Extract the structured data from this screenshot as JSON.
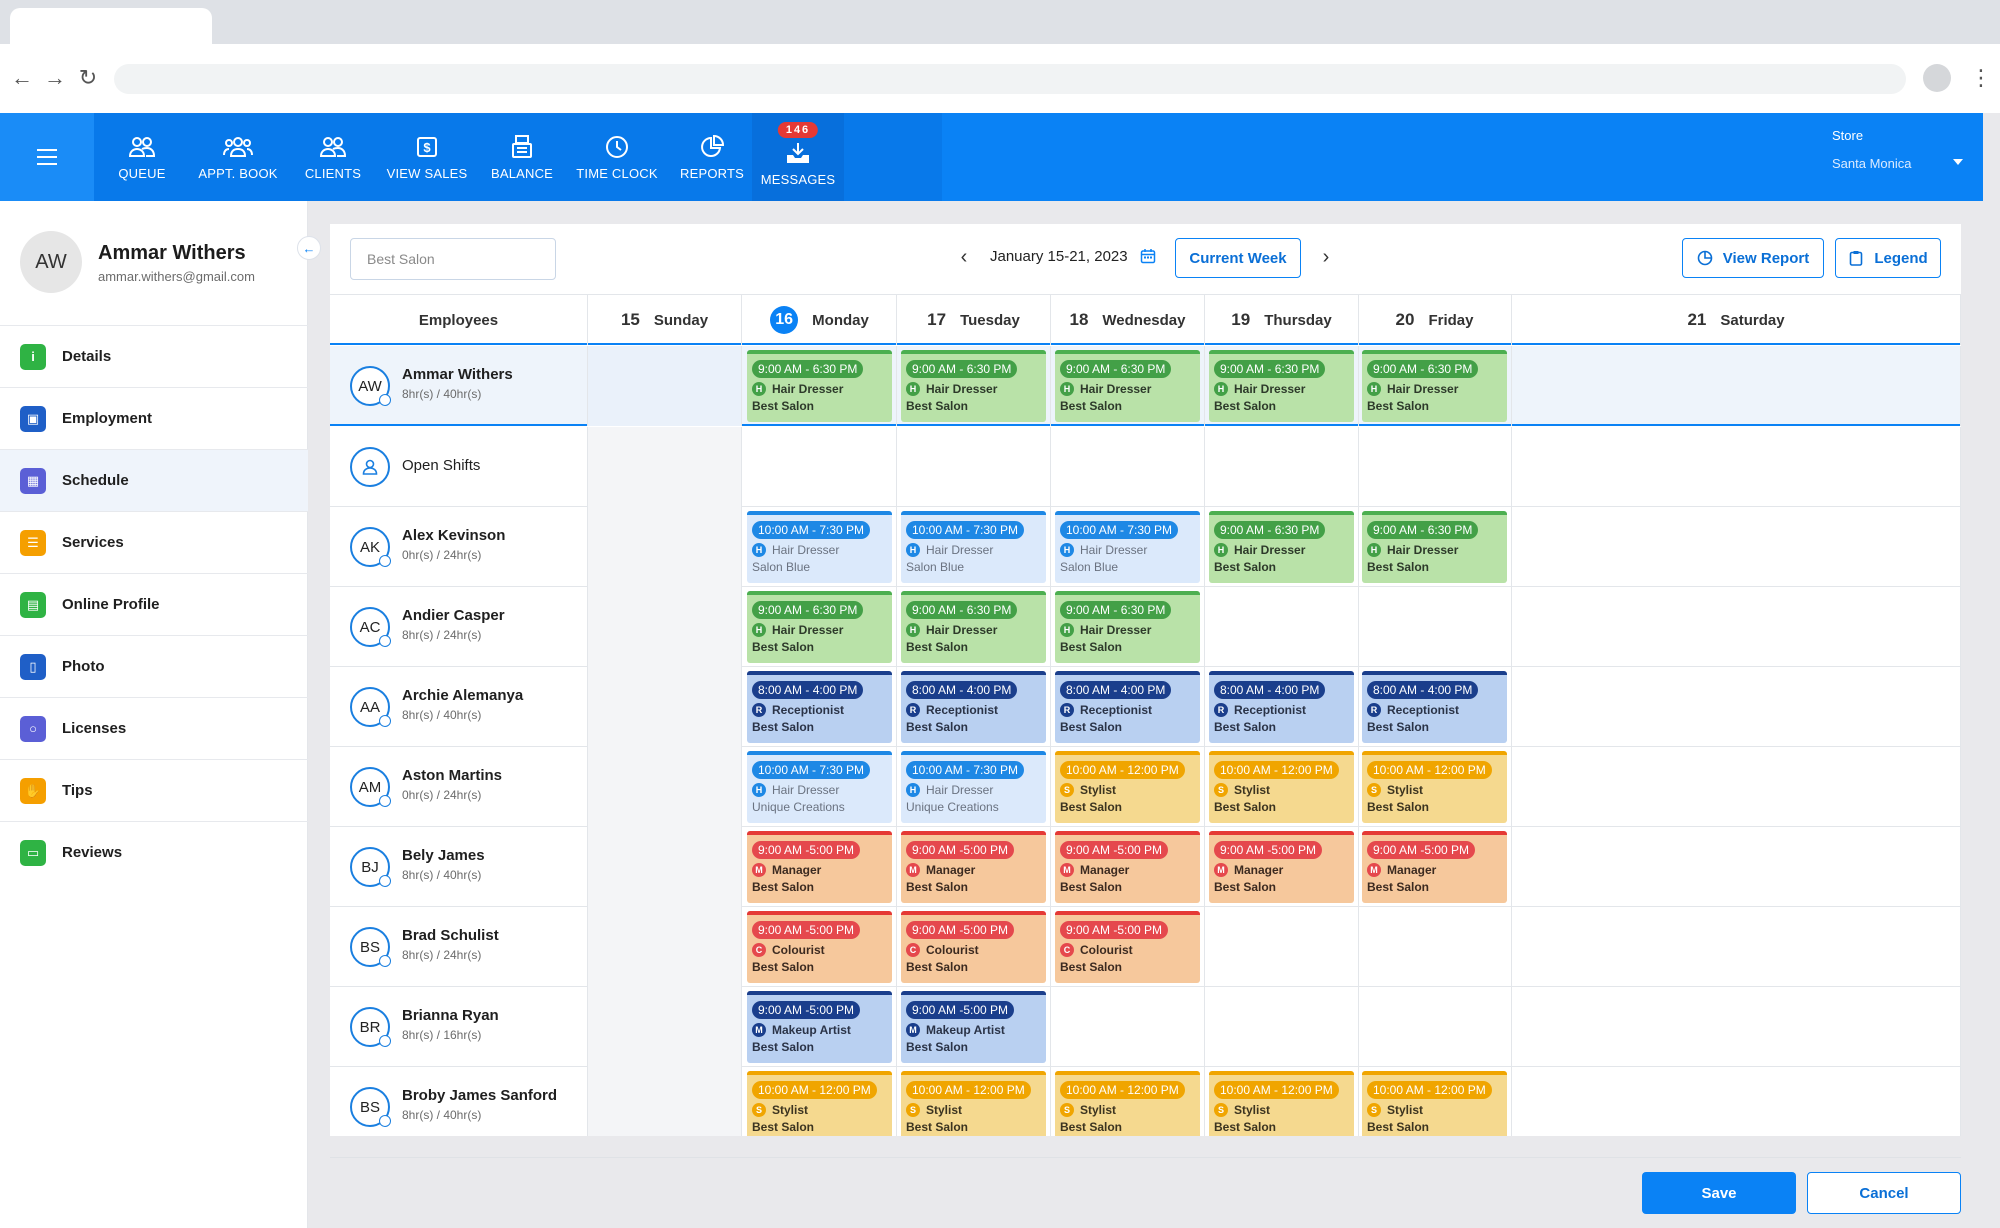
{
  "nav": {
    "items": [
      {
        "key": "queue",
        "label": "QUEUE",
        "icon": "users-icon"
      },
      {
        "key": "appt",
        "label": "APPT. BOOK",
        "icon": "group-icon"
      },
      {
        "key": "clients",
        "label": "CLIENTS",
        "icon": "clients-icon"
      },
      {
        "key": "sales",
        "label": "VIEW SALES",
        "icon": "dollar-icon"
      },
      {
        "key": "balance",
        "label": "BALANCE",
        "icon": "register-icon"
      },
      {
        "key": "timeclock",
        "label": "TIME CLOCK",
        "icon": "clock-icon"
      },
      {
        "key": "reports",
        "label": "REPORTS",
        "icon": "pie-chart-icon"
      },
      {
        "key": "messages",
        "label": "MESSAGES",
        "icon": "inbox-icon"
      }
    ],
    "messages_badge": "146"
  },
  "store": {
    "label": "Store",
    "value": "Santa Monica"
  },
  "profile": {
    "initials": "AW",
    "name": "Ammar Withers",
    "email": "ammar.withers@gmail.com"
  },
  "sidebar": {
    "items": [
      {
        "label": "Details",
        "icon": "info-icon",
        "color": "#2fb344",
        "glyph": "i"
      },
      {
        "label": "Employment",
        "icon": "briefcase-icon",
        "color": "#1f5fc7",
        "glyph": "▣"
      },
      {
        "label": "Schedule",
        "icon": "calendar-icon",
        "color": "#5b5fd6",
        "glyph": "▦"
      },
      {
        "label": "Services",
        "icon": "list-icon",
        "color": "#f59f00",
        "glyph": "☰"
      },
      {
        "label": "Online Profile",
        "icon": "document-icon",
        "color": "#2fb344",
        "glyph": "▤"
      },
      {
        "label": "Photo",
        "icon": "badge-icon",
        "color": "#1f5fc7",
        "glyph": "▯"
      },
      {
        "label": "Licenses",
        "icon": "circle-icon",
        "color": "#5b5fd6",
        "glyph": "○"
      },
      {
        "label": "Tips",
        "icon": "hand-coin-icon",
        "color": "#f59f00",
        "glyph": "✋"
      },
      {
        "label": "Reviews",
        "icon": "chat-icon",
        "color": "#2fb344",
        "glyph": "▭"
      }
    ],
    "active": "Schedule"
  },
  "toolbar": {
    "search_placeholder": "Best Salon",
    "week_label": "January 15-21, 2023",
    "current_week": "Current Week",
    "view_report": "View Report",
    "legend": "Legend"
  },
  "grid": {
    "employees_header": "Employees",
    "days": [
      {
        "num": "15",
        "name": "Sunday",
        "today": false
      },
      {
        "num": "16",
        "name": "Monday",
        "today": true
      },
      {
        "num": "17",
        "name": "Tuesday",
        "today": false
      },
      {
        "num": "18",
        "name": "Wednesday",
        "today": false
      },
      {
        "num": "19",
        "name": "Thursday",
        "today": false
      },
      {
        "num": "20",
        "name": "Friday",
        "today": false
      },
      {
        "num": "21",
        "name": "Saturday",
        "today": false
      }
    ],
    "rows": [
      {
        "initials": "AW",
        "name": "Ammar Withers",
        "hours": "8hr(s) / 40hr(s)",
        "highlight": true,
        "shifts": [
          null,
          {
            "time": "9:00 AM - 6:30 PM",
            "code": "H",
            "role": "Hair Dresser",
            "loc": "Best Salon",
            "style": "green"
          },
          {
            "time": "9:00 AM - 6:30 PM",
            "code": "H",
            "role": "Hair Dresser",
            "loc": "Best Salon",
            "style": "green"
          },
          {
            "time": "9:00 AM - 6:30 PM",
            "code": "H",
            "role": "Hair Dresser",
            "loc": "Best Salon",
            "style": "green"
          },
          {
            "time": "9:00 AM - 6:30 PM",
            "code": "H",
            "role": "Hair Dresser",
            "loc": "Best Salon",
            "style": "green"
          },
          {
            "time": "9:00 AM - 6:30 PM",
            "code": "H",
            "role": "Hair Dresser",
            "loc": "Best Salon",
            "style": "green"
          },
          null
        ]
      },
      {
        "initials": "",
        "name": "Open Shifts",
        "hours": "",
        "open": true,
        "shifts": [
          null,
          null,
          null,
          null,
          null,
          null,
          null
        ]
      },
      {
        "initials": "AK",
        "name": "Alex Kevinson",
        "hours": "0hr(s) / 24hr(s)",
        "shifts": [
          null,
          {
            "time": "10:00 AM - 7:30 PM",
            "code": "H",
            "role": "Hair Dresser",
            "loc": "Salon Blue",
            "style": "lightblue"
          },
          {
            "time": "10:00 AM - 7:30 PM",
            "code": "H",
            "role": "Hair Dresser",
            "loc": "Salon Blue",
            "style": "lightblue"
          },
          {
            "time": "10:00 AM - 7:30 PM",
            "code": "H",
            "role": "Hair Dresser",
            "loc": "Salon Blue",
            "style": "lightblue"
          },
          {
            "time": "9:00 AM - 6:30 PM",
            "code": "H",
            "role": "Hair Dresser",
            "loc": "Best Salon",
            "style": "green"
          },
          {
            "time": "9:00 AM - 6:30 PM",
            "code": "H",
            "role": "Hair Dresser",
            "loc": "Best Salon",
            "style": "green"
          },
          null
        ]
      },
      {
        "initials": "AC",
        "name": "Andier Casper",
        "hours": "8hr(s) / 24hr(s)",
        "shifts": [
          null,
          {
            "time": "9:00 AM - 6:30 PM",
            "code": "H",
            "role": "Hair Dresser",
            "loc": "Best Salon",
            "style": "green"
          },
          {
            "time": "9:00 AM - 6:30 PM",
            "code": "H",
            "role": "Hair Dresser",
            "loc": "Best Salon",
            "style": "green"
          },
          {
            "time": "9:00 AM - 6:30 PM",
            "code": "H",
            "role": "Hair Dresser",
            "loc": "Best Salon",
            "style": "green"
          },
          null,
          null,
          null
        ]
      },
      {
        "initials": "AA",
        "name": "Archie Alemanya",
        "hours": "8hr(s) / 40hr(s)",
        "shifts": [
          null,
          {
            "time": "8:00 AM  - 4:00 PM",
            "code": "R",
            "role": "Receptionist",
            "loc": "Best Salon",
            "style": "navy"
          },
          {
            "time": "8:00 AM  - 4:00 PM",
            "code": "R",
            "role": "Receptionist",
            "loc": "Best Salon",
            "style": "navy"
          },
          {
            "time": "8:00 AM  - 4:00 PM",
            "code": "R",
            "role": "Receptionist",
            "loc": "Best Salon",
            "style": "navy"
          },
          {
            "time": "8:00 AM  - 4:00 PM",
            "code": "R",
            "role": "Receptionist",
            "loc": "Best Salon",
            "style": "navy"
          },
          {
            "time": "8:00 AM  - 4:00 PM",
            "code": "R",
            "role": "Receptionist",
            "loc": "Best Salon",
            "style": "navy"
          },
          null
        ]
      },
      {
        "initials": "AM",
        "name": "Aston Martins",
        "hours": "0hr(s) / 24hr(s)",
        "shifts": [
          null,
          {
            "time": "10:00 AM - 7:30 PM",
            "code": "H",
            "role": "Hair Dresser",
            "loc": "Unique Creations",
            "style": "lightblue"
          },
          {
            "time": "10:00 AM - 7:30 PM",
            "code": "H",
            "role": "Hair Dresser",
            "loc": "Unique Creations",
            "style": "lightblue"
          },
          {
            "time": "10:00 AM - 12:00 PM",
            "code": "S",
            "role": "Stylist",
            "loc": "Best Salon",
            "style": "yellow"
          },
          {
            "time": "10:00 AM - 12:00 PM",
            "code": "S",
            "role": "Stylist",
            "loc": "Best Salon",
            "style": "yellow"
          },
          {
            "time": "10:00 AM - 12:00 PM",
            "code": "S",
            "role": "Stylist",
            "loc": "Best Salon",
            "style": "yellow"
          },
          null
        ]
      },
      {
        "initials": "BJ",
        "name": "Bely James",
        "hours": "8hr(s) / 40hr(s)",
        "shifts": [
          null,
          {
            "time": "9:00 AM -5:00 PM",
            "code": "M",
            "role": "Manager",
            "loc": "Best Salon",
            "style": "orange"
          },
          {
            "time": "9:00 AM -5:00 PM",
            "code": "M",
            "role": "Manager",
            "loc": "Best Salon",
            "style": "orange"
          },
          {
            "time": "9:00 AM -5:00 PM",
            "code": "M",
            "role": "Manager",
            "loc": "Best Salon",
            "style": "orange"
          },
          {
            "time": "9:00 AM -5:00 PM",
            "code": "M",
            "role": "Manager",
            "loc": "Best Salon",
            "style": "orange"
          },
          {
            "time": "9:00 AM -5:00 PM",
            "code": "M",
            "role": "Manager",
            "loc": "Best Salon",
            "style": "orange"
          },
          null
        ]
      },
      {
        "initials": "BS",
        "name": "Brad Schulist",
        "hours": "8hr(s) / 24hr(s)",
        "shifts": [
          null,
          {
            "time": "9:00 AM -5:00 PM",
            "code": "C",
            "role": "Colourist",
            "loc": "Best Salon",
            "style": "orange"
          },
          {
            "time": "9:00 AM -5:00 PM",
            "code": "C",
            "role": "Colourist",
            "loc": "Best Salon",
            "style": "orange"
          },
          {
            "time": "9:00 AM -5:00 PM",
            "code": "C",
            "role": "Colourist",
            "loc": "Best Salon",
            "style": "orange"
          },
          null,
          null,
          null
        ]
      },
      {
        "initials": "BR",
        "name": "Brianna Ryan",
        "hours": "8hr(s) / 16hr(s)",
        "shifts": [
          null,
          {
            "time": "9:00 AM -5:00 PM",
            "code": "M",
            "role": "Makeup Artist",
            "loc": "Best Salon",
            "style": "navy"
          },
          {
            "time": "9:00 AM -5:00 PM",
            "code": "M",
            "role": "Makeup Artist",
            "loc": "Best Salon",
            "style": "navy"
          },
          null,
          null,
          null,
          null
        ]
      },
      {
        "initials": "BS",
        "name": "Broby James Sanford",
        "hours": "8hr(s) / 40hr(s)",
        "shifts": [
          null,
          {
            "time": "10:00 AM - 12:00 PM",
            "code": "S",
            "role": "Stylist",
            "loc": "Best Salon",
            "style": "yellow"
          },
          {
            "time": "10:00 AM - 12:00 PM",
            "code": "S",
            "role": "Stylist",
            "loc": "Best Salon",
            "style": "yellow"
          },
          {
            "time": "10:00 AM - 12:00 PM",
            "code": "S",
            "role": "Stylist",
            "loc": "Best Salon",
            "style": "yellow"
          },
          {
            "time": "10:00 AM - 12:00 PM",
            "code": "S",
            "role": "Stylist",
            "loc": "Best Salon",
            "style": "yellow"
          },
          {
            "time": "10:00 AM - 12:00 PM",
            "code": "S",
            "role": "Stylist",
            "loc": "Best Salon",
            "style": "yellow"
          },
          null
        ]
      }
    ]
  },
  "footer": {
    "save": "Save",
    "cancel": "Cancel"
  }
}
